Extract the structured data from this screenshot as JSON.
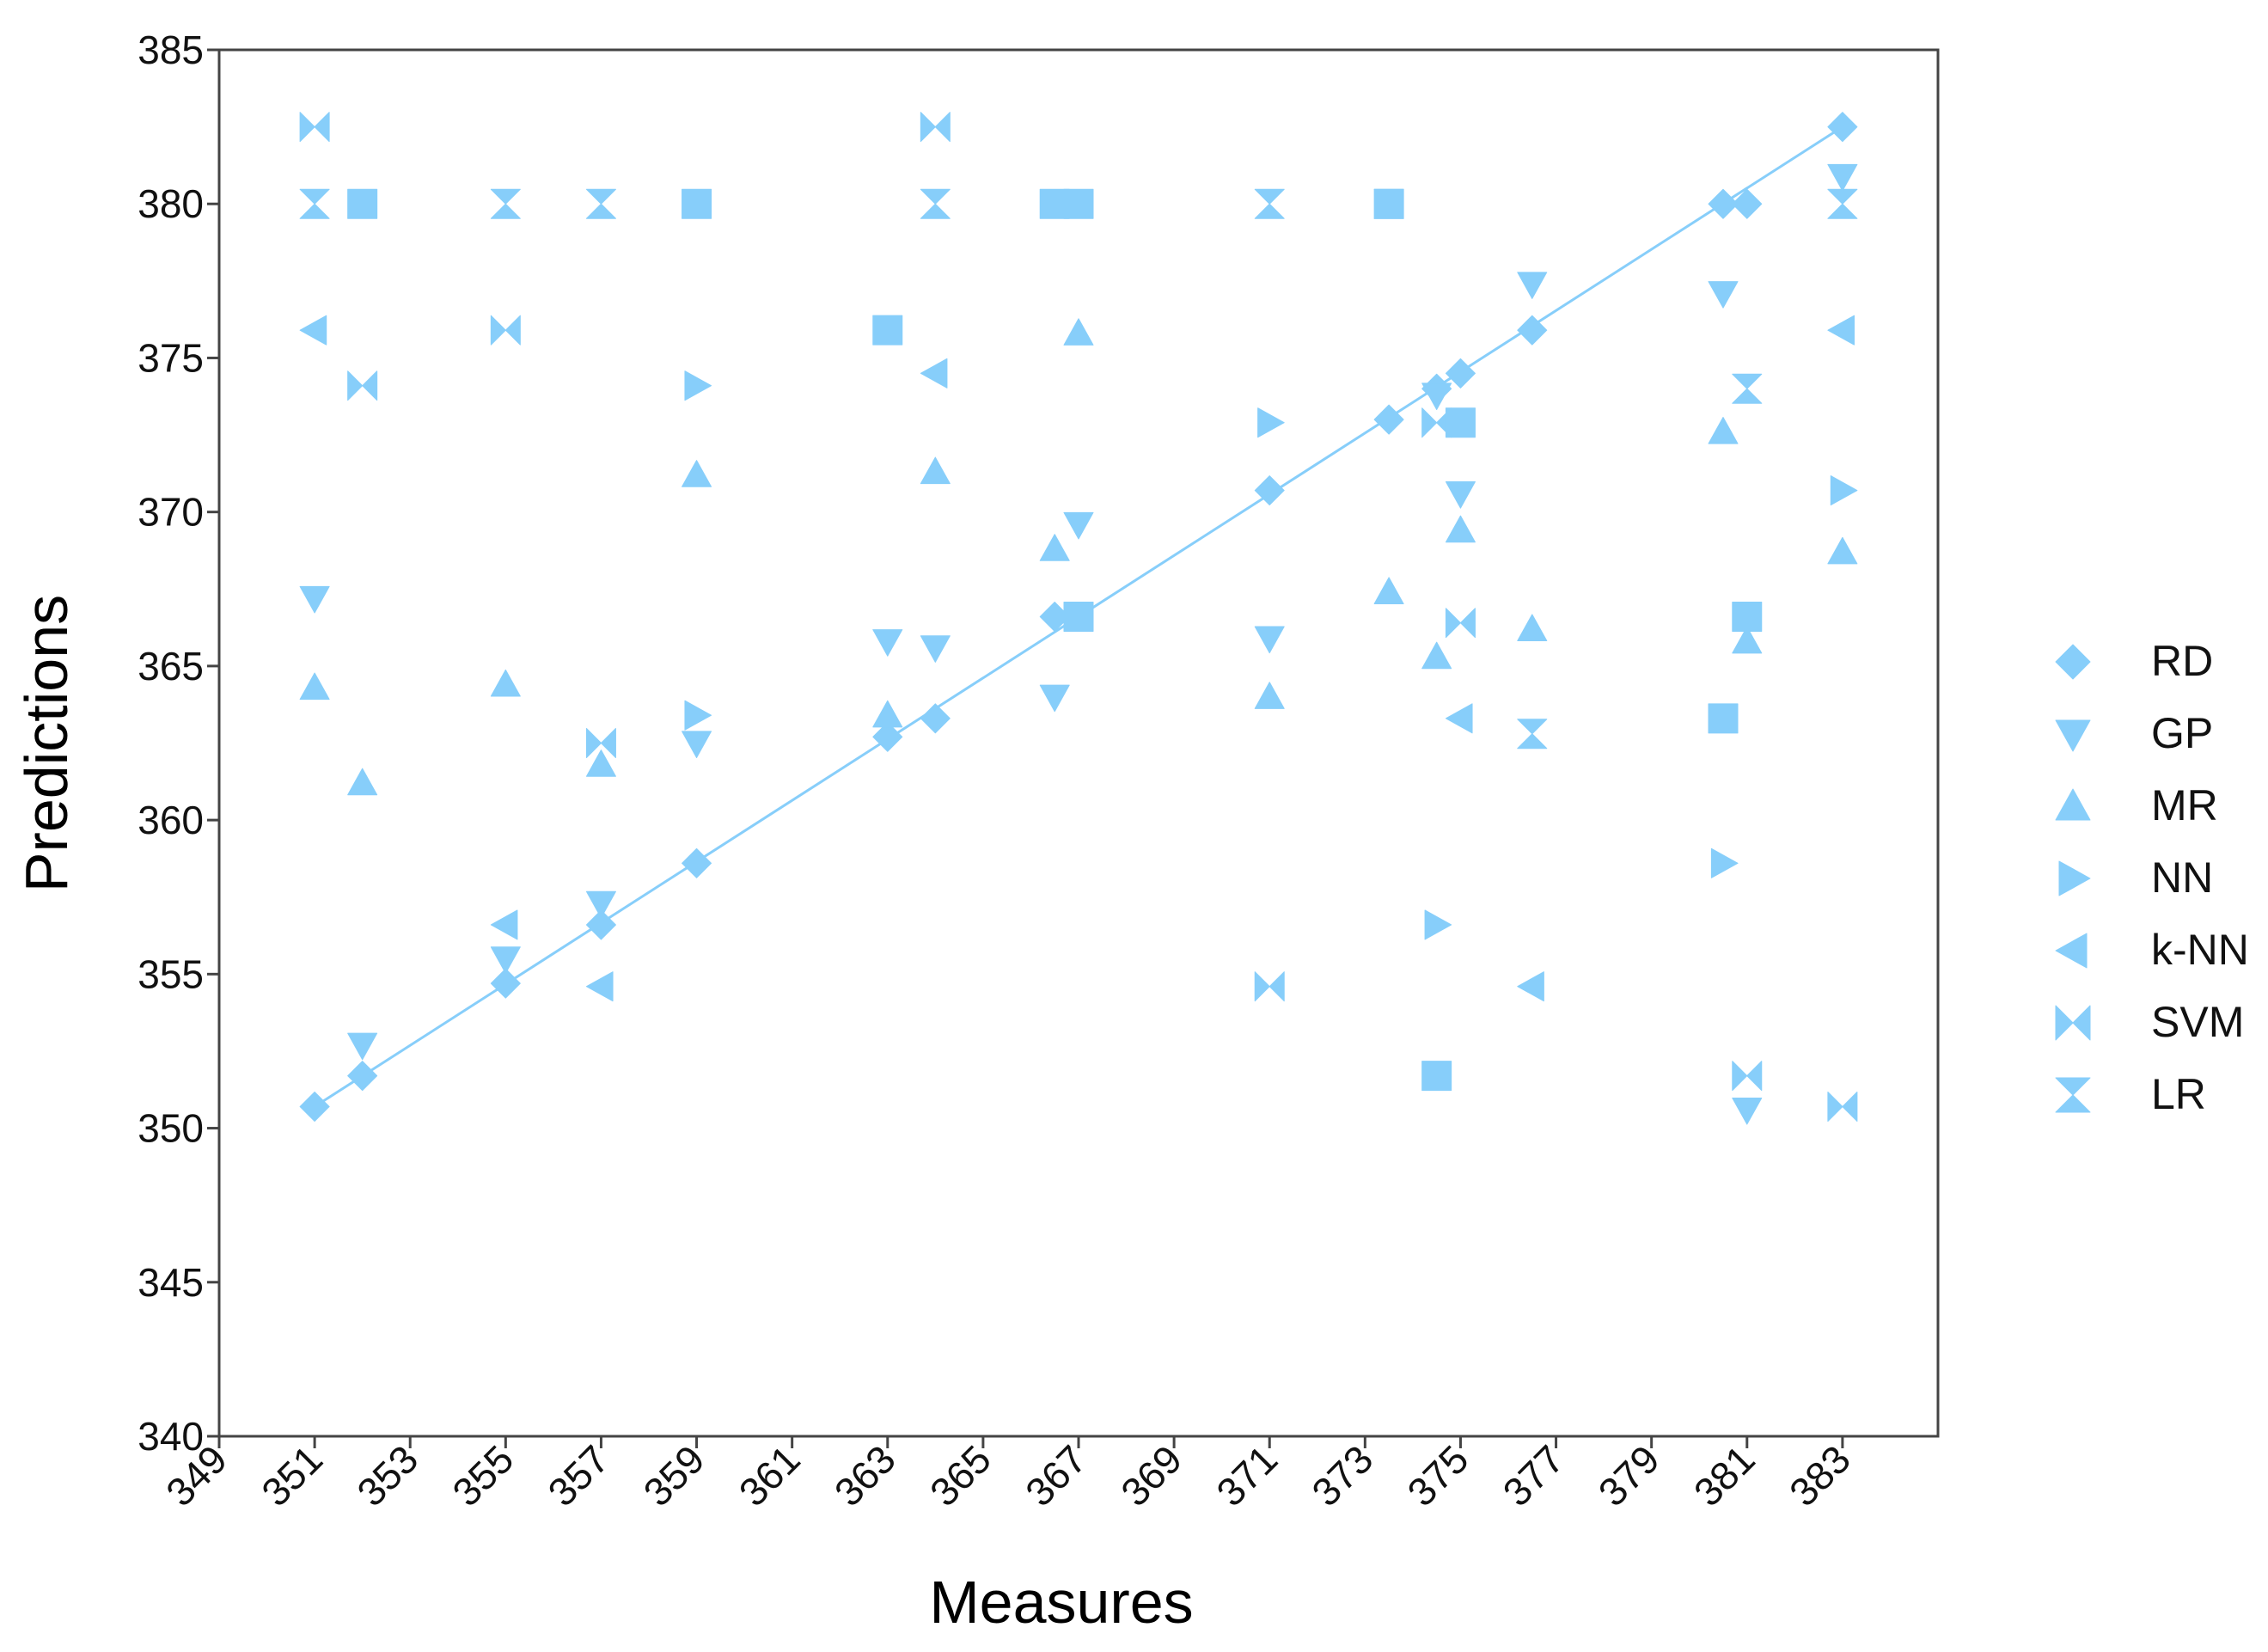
{
  "chart_data": {
    "type": "scatter",
    "title": "",
    "xlabel": "Measures",
    "ylabel": "Predictions",
    "xlim": [
      349,
      385
    ],
    "ylim": [
      340,
      385
    ],
    "x_ticks": [
      "349",
      "351",
      "353",
      "355",
      "357",
      "359",
      "361",
      "363",
      "365",
      "367",
      "369",
      "371",
      "373",
      "375",
      "377",
      "379",
      "381",
      "383"
    ],
    "y_ticks": [
      "340",
      "345",
      "350",
      "355",
      "360",
      "365",
      "370",
      "375",
      "380",
      "385"
    ],
    "grid": false,
    "legend_position": "right",
    "color": "#87CEFA",
    "fit_line": {
      "x": [
        351,
        383
      ],
      "y": [
        350.7,
        382.5
      ]
    },
    "series": [
      {
        "name": "RD",
        "marker": "diamond",
        "points": [
          [
            351,
            350.7
          ],
          [
            352,
            351.7
          ],
          [
            355,
            354.7
          ],
          [
            357,
            356.6
          ],
          [
            359,
            358.6
          ],
          [
            363,
            362.7
          ],
          [
            364,
            363.3
          ],
          [
            366.5,
            366.6
          ],
          [
            371,
            370.7
          ],
          [
            373.5,
            373
          ],
          [
            374.5,
            374
          ],
          [
            375,
            374.5
          ],
          [
            376.5,
            375.9
          ],
          [
            380.5,
            380
          ],
          [
            381,
            380
          ],
          [
            383,
            382.5
          ]
        ]
      },
      {
        "name": "GP",
        "marker": "triangle-down",
        "points": [
          [
            351,
            367.2
          ],
          [
            352,
            352.7
          ],
          [
            355,
            355.5
          ],
          [
            357,
            357.3
          ],
          [
            359,
            362.5
          ],
          [
            363,
            365.8
          ],
          [
            364,
            365.6
          ],
          [
            366.5,
            364
          ],
          [
            367,
            369.6
          ],
          [
            371,
            365.9
          ],
          [
            374.5,
            373.8
          ],
          [
            375,
            370.6
          ],
          [
            376.5,
            377.4
          ],
          [
            380.5,
            377.1
          ],
          [
            381,
            350.6
          ],
          [
            383,
            380.9
          ]
        ]
      },
      {
        "name": "MR",
        "marker": "triangle-up",
        "points": [
          [
            351,
            364.3
          ],
          [
            352,
            361.2
          ],
          [
            355,
            364.4
          ],
          [
            357,
            361.8
          ],
          [
            359,
            371.2
          ],
          [
            363,
            363.4
          ],
          [
            364,
            371.3
          ],
          [
            366.5,
            368.8
          ],
          [
            367,
            375.8
          ],
          [
            371,
            364
          ],
          [
            373.5,
            367.4
          ],
          [
            374.5,
            365.3
          ],
          [
            375,
            369.4
          ],
          [
            376.5,
            366.2
          ],
          [
            380.5,
            372.6
          ],
          [
            381,
            365.8
          ],
          [
            383,
            368.7
          ]
        ]
      },
      {
        "name": "NN",
        "marker": "triangle-right",
        "points": [
          [
            359,
            374.1
          ],
          [
            359,
            363.4
          ],
          [
            371,
            372.9
          ],
          [
            374.5,
            356.6
          ],
          [
            380.5,
            358.6
          ],
          [
            383,
            370.7
          ]
        ]
      },
      {
        "name": "k-NN",
        "marker": "triangle-left",
        "points": [
          [
            351,
            375.9
          ],
          [
            355,
            356.6
          ],
          [
            357,
            354.6
          ],
          [
            364,
            374.5
          ],
          [
            375,
            363.3
          ],
          [
            376.5,
            354.6
          ],
          [
            383,
            375.9
          ]
        ]
      },
      {
        "name": "SVM",
        "marker": "bowtie",
        "points": [
          [
            351,
            382.5
          ],
          [
            352,
            374.1
          ],
          [
            355,
            375.9
          ],
          [
            357,
            362.5
          ],
          [
            364,
            382.5
          ],
          [
            371,
            354.6
          ],
          [
            374.5,
            372.9
          ],
          [
            375,
            366.4
          ],
          [
            381,
            351.7
          ],
          [
            383,
            350.7
          ]
        ]
      },
      {
        "name": "LR",
        "marker": "hourglass",
        "points": [
          [
            351,
            380
          ],
          [
            355,
            380
          ],
          [
            357,
            380
          ],
          [
            364,
            380
          ],
          [
            371,
            380
          ],
          [
            373.5,
            380
          ],
          [
            376.5,
            362.8
          ],
          [
            381,
            374
          ],
          [
            383,
            380
          ]
        ]
      },
      {
        "name": "",
        "marker": "square",
        "points": [
          [
            352,
            380
          ],
          [
            359,
            380
          ],
          [
            363,
            375.9
          ],
          [
            366.5,
            380
          ],
          [
            367,
            380
          ],
          [
            367,
            366.6
          ],
          [
            373.5,
            380
          ],
          [
            374.5,
            351.7
          ],
          [
            375,
            372.9
          ],
          [
            380.5,
            363.3
          ],
          [
            381,
            366.6
          ]
        ]
      }
    ]
  }
}
